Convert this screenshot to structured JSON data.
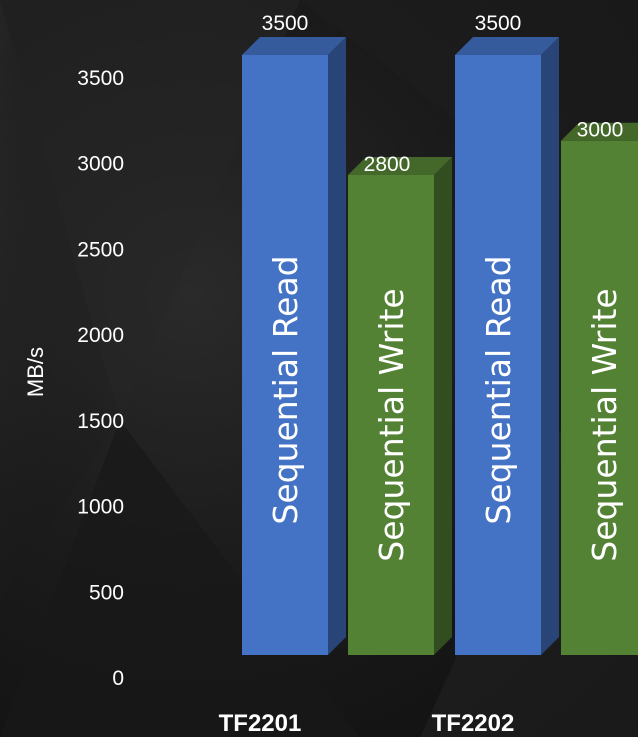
{
  "chart_data": {
    "type": "bar",
    "categories": [
      "TF2201",
      "TF2202"
    ],
    "series": [
      {
        "name": "Sequential Read",
        "color": "#4472C4",
        "values": [
          3500,
          3500
        ]
      },
      {
        "name": "Sequential Write",
        "color": "#548235",
        "values": [
          2800,
          3000
        ]
      }
    ],
    "ylabel": "MB/s",
    "ylim": [
      0,
      3500
    ],
    "yticks": [
      0,
      500,
      1000,
      1500,
      2000,
      2500,
      3000,
      3500
    ],
    "grid": false,
    "legend": "none",
    "style": "3d-column"
  }
}
